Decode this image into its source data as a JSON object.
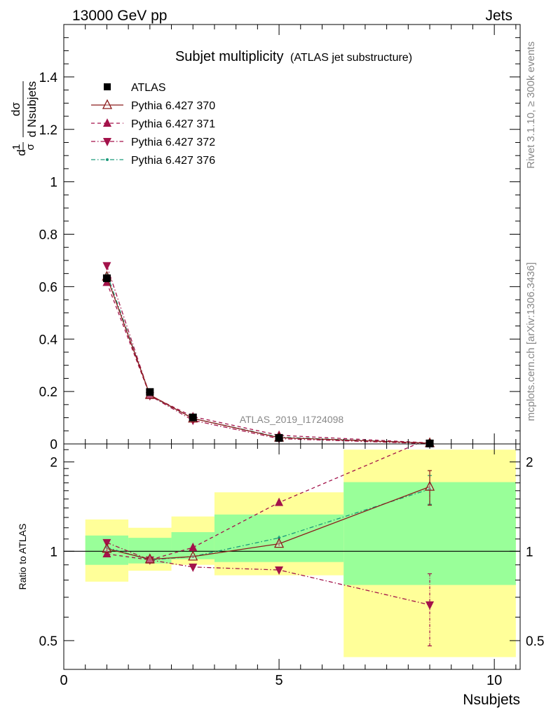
{
  "header": {
    "left": "13000 GeV pp",
    "right": "Jets"
  },
  "side_labels": {
    "rivet": "Rivet 3.1.10, ≥ 300k events",
    "mcplots": "mcplots.cern.ch [arXiv:1306.3436]"
  },
  "chart_data": [
    {
      "type": "scatter",
      "panel": "main",
      "title": "Subjet multiplicity",
      "subtitle": "(ATLAS jet substructure)",
      "analysis_label": "ATLAS_2019_I1724098",
      "ylabel_parts": {
        "d1": "d",
        "one": "1",
        "sigma": "σ",
        "dsigma": "dσ",
        "dN": "d Nsubjets"
      },
      "xlim": [
        0,
        10.6
      ],
      "ylim": [
        0,
        1.6
      ],
      "yticks": [
        "0",
        "0.2",
        "0.4",
        "0.6",
        "0.8",
        "1",
        "1.2",
        "1.4"
      ],
      "legend_position": "top-left",
      "x": [
        1,
        2,
        3,
        5,
        8.5
      ],
      "series": [
        {
          "name": "ATLAS",
          "values": [
            0.632,
            0.198,
            0.101,
            0.023,
            0.0018
          ],
          "color": "#000000",
          "marker": "square",
          "line": "none"
        },
        {
          "name": "Pythia 6.427 370",
          "values": [
            0.638,
            0.187,
            0.097,
            0.024,
            0.003
          ],
          "color": "#8b1a1a",
          "marker": "triangle-up-open",
          "line": "solid"
        },
        {
          "name": "Pythia 6.427 371",
          "values": [
            0.616,
            0.185,
            0.104,
            0.033,
            0.004
          ],
          "color": "#a3124a",
          "marker": "triangle-up",
          "line": "dashed"
        },
        {
          "name": "Pythia 6.427 372",
          "values": [
            0.68,
            0.184,
            0.09,
            0.02,
            0.0012
          ],
          "color": "#a3124a",
          "marker": "triangle-down",
          "line": "dashdot"
        },
        {
          "name": "Pythia 6.427 376",
          "values": [
            0.65,
            0.185,
            0.097,
            0.026,
            0.003
          ],
          "color": "#1a9a7a",
          "marker": "dot",
          "line": "dashdot"
        }
      ]
    },
    {
      "type": "scatter",
      "panel": "ratio",
      "ylabel": "Ratio to ATLAS",
      "xlabel": "Nsubjets",
      "xlim": [
        0,
        10.6
      ],
      "ylim": [
        0.4,
        2.3
      ],
      "log_y": true,
      "xticks": [
        "0",
        "5",
        "10"
      ],
      "yticks": [
        "0.5",
        "1",
        "2"
      ],
      "bands": [
        {
          "x_low": 0.5,
          "x_high": 1.5,
          "green": [
            0.9,
            1.13
          ],
          "yellow": [
            0.79,
            1.28
          ]
        },
        {
          "x_low": 1.5,
          "x_high": 2.5,
          "green": [
            0.91,
            1.11
          ],
          "yellow": [
            0.86,
            1.2
          ]
        },
        {
          "x_low": 2.5,
          "x_high": 3.5,
          "green": [
            0.94,
            1.16
          ],
          "yellow": [
            0.9,
            1.31
          ]
        },
        {
          "x_low": 3.5,
          "x_high": 6.5,
          "green": [
            0.92,
            1.33
          ],
          "yellow": [
            0.83,
            1.58
          ]
        },
        {
          "x_low": 6.5,
          "x_high": 10.5,
          "green": [
            0.77,
            1.71
          ],
          "yellow": [
            0.44,
            2.2
          ]
        }
      ],
      "x": [
        1,
        2,
        3,
        5,
        8.5
      ],
      "series": [
        {
          "name": "Pythia 6.427 370",
          "values": [
            1.02,
            0.94,
            0.96,
            1.06,
            1.65
          ],
          "err": [
            0.02,
            0.01,
            0.01,
            0.02,
            0.22
          ],
          "color": "#8b1a1a",
          "marker": "triangle-up-open",
          "line": "solid"
        },
        {
          "name": "Pythia 6.427 371",
          "values": [
            0.98,
            0.935,
            1.03,
            1.46,
            2.4
          ],
          "err": [
            0.01,
            0.01,
            0.01,
            0.02,
            0.0
          ],
          "color": "#a3124a",
          "marker": "triangle-up",
          "line": "dashed"
        },
        {
          "name": "Pythia 6.427 372",
          "values": [
            1.07,
            0.935,
            0.885,
            0.865,
            0.66
          ],
          "err": [
            0.01,
            0.01,
            0.015,
            0.02,
            0.18
          ],
          "color": "#a3124a",
          "marker": "triangle-down",
          "line": "dashdot"
        },
        {
          "name": "Pythia 6.427 376",
          "values": [
            1.03,
            0.935,
            0.96,
            1.11,
            1.62
          ],
          "err": [
            0.01,
            0.01,
            0.01,
            0.02,
            0.18
          ],
          "color": "#1a9a7a",
          "marker": "dot",
          "line": "dashdot"
        }
      ]
    }
  ]
}
